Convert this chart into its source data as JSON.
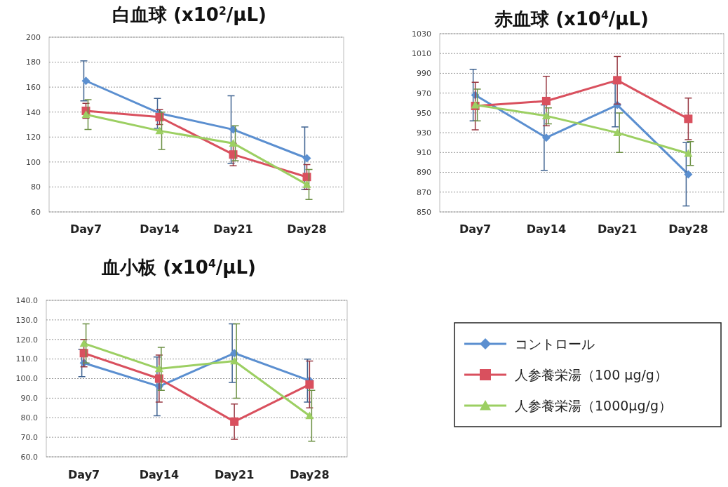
{
  "chart_data": [
    {
      "type": "line",
      "title": "白血球 (x10$^{2}$/μL)",
      "categories": [
        "Day7",
        "Day14",
        "Day21",
        "Day28"
      ],
      "ylim": [
        60,
        200
      ],
      "yticks": [
        60,
        80,
        100,
        120,
        140,
        160,
        180,
        200
      ],
      "grid": "y",
      "legend": false,
      "series": [
        {
          "color": "#5b8fd0",
          "marker": "diamond",
          "values": [
            165,
            139,
            126,
            103
          ],
          "errors": [
            16,
            12,
            27,
            25
          ]
        },
        {
          "color": "#d9505e",
          "marker": "square",
          "values": [
            141,
            136,
            106,
            88
          ],
          "errors": [
            6,
            6,
            9,
            10
          ]
        },
        {
          "color": "#9ccf62",
          "marker": "triangle",
          "values": [
            138,
            125,
            115,
            82
          ],
          "errors": [
            12,
            15,
            14,
            12
          ]
        }
      ]
    },
    {
      "type": "line",
      "title": "赤血球 (x10$^{4}$/μL)",
      "categories": [
        "Day7",
        "Day14",
        "Day21",
        "Day28"
      ],
      "ylim": [
        850,
        1030
      ],
      "yticks": [
        850,
        870,
        890,
        910,
        930,
        950,
        970,
        990,
        1010,
        1030
      ],
      "grid": "y",
      "legend": false,
      "series": [
        {
          "color": "#5b8fd0",
          "marker": "diamond",
          "values": [
            968,
            925,
            958,
            888
          ],
          "errors": [
            26,
            33,
            22,
            32
          ]
        },
        {
          "color": "#d9505e",
          "marker": "square",
          "values": [
            957,
            962,
            983,
            944
          ],
          "errors": [
            24,
            25,
            24,
            21
          ]
        },
        {
          "color": "#9ccf62",
          "marker": "triangle",
          "values": [
            958,
            947,
            930,
            909
          ],
          "errors": [
            16,
            8,
            20,
            12
          ]
        }
      ]
    },
    {
      "type": "line",
      "title": "血小板 (x10$^{4}$/μL)",
      "categories": [
        "Day7",
        "Day14",
        "Day21",
        "Day28"
      ],
      "ylim": [
        60,
        140
      ],
      "yticks": [
        {
          "value": 60,
          "label": "60.0"
        },
        {
          "value": 70,
          "label": "70.0"
        },
        {
          "value": 80,
          "label": "80.0"
        },
        {
          "value": 90,
          "label": "90.0"
        },
        {
          "value": 100,
          "label": "100.0"
        },
        {
          "value": 110,
          "label": "110.0"
        },
        {
          "value": 120,
          "label": "120.0"
        },
        {
          "value": 130,
          "label": "130.0"
        },
        {
          "value": 140,
          "label": "140.0"
        }
      ],
      "grid": "y",
      "legend": "right",
      "series": [
        {
          "name": "コントロール",
          "color": "#5b8fd0",
          "marker": "diamond",
          "values": [
            108,
            96,
            113,
            99
          ],
          "errors": [
            7,
            15,
            15,
            11
          ]
        },
        {
          "name": "人参養栄湯（100 μg/g）",
          "color": "#d9505e",
          "marker": "square",
          "values": [
            113,
            100,
            78,
            97
          ],
          "errors": [
            7,
            12,
            9,
            12
          ]
        },
        {
          "name": "人参養栄湯（1000μg/g）",
          "color": "#9ccf62",
          "marker": "triangle",
          "values": [
            118,
            105,
            109,
            81
          ],
          "errors": [
            10,
            11,
            19,
            13
          ]
        }
      ]
    }
  ]
}
